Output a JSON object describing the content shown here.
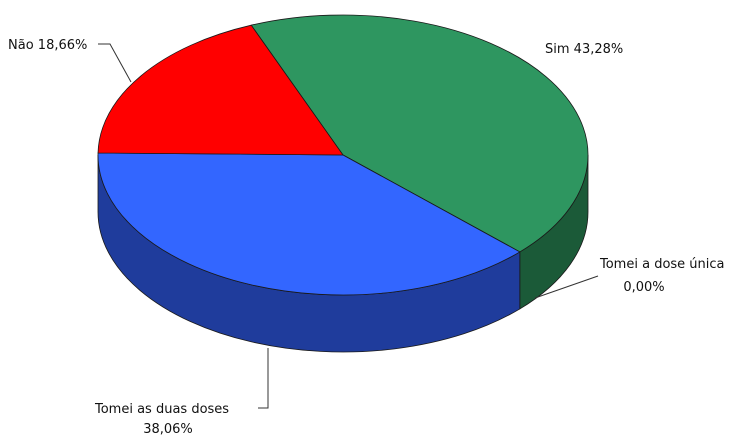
{
  "chart_data": {
    "type": "pie",
    "title": "",
    "style": "3d",
    "slices": [
      {
        "label": "Sim",
        "value": 43.28,
        "value_text": "43,28%",
        "color": "#2e9660",
        "side_color": "#1b5a38"
      },
      {
        "label": "Tomei a dose única",
        "value": 0.0,
        "value_text": "0,00%",
        "color": "#2e9660",
        "side_color": "#1b5a38"
      },
      {
        "label": "Tomei as duas doses",
        "value": 38.06,
        "value_text": "38,06%",
        "color": "#3366ff",
        "side_color": "#1f3c9c"
      },
      {
        "label": "Não",
        "value": 18.66,
        "value_text": "18,66%",
        "color": "#ff0000",
        "side_color": "#a30000"
      }
    ]
  }
}
